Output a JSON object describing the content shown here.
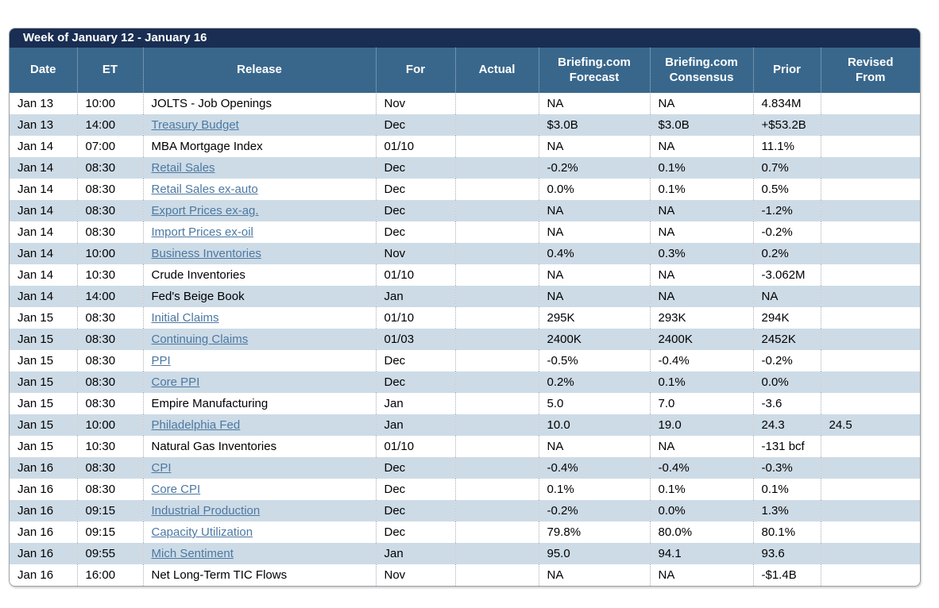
{
  "title": "Week of January 12 - January 16",
  "header": {
    "date": "Date",
    "et": "ET",
    "release": "Release",
    "for": "For",
    "actual": "Actual",
    "forecast_line1": "Briefing.com",
    "forecast_line2": "Forecast",
    "consensus_line1": "Briefing.com",
    "consensus_line2": "Consensus",
    "prior": "Prior",
    "revised_line1": "Revised",
    "revised_line2": "From"
  },
  "colors": {
    "title_bar_bg": "#192e52",
    "header_bg": "#39678c",
    "alt_row_bg": "#cddbe6",
    "link_color": "#4c78a2"
  },
  "rows": [
    {
      "date": "Jan 13",
      "et": "10:00",
      "release": "JOLTS - Job Openings",
      "link": false,
      "for": "Nov",
      "actual": "",
      "forecast": "NA",
      "consensus": "NA",
      "prior": "4.834M",
      "revised": ""
    },
    {
      "date": "Jan 13",
      "et": "14:00",
      "release": "Treasury Budget",
      "link": true,
      "for": "Dec",
      "actual": "",
      "forecast": "$3.0B",
      "consensus": "$3.0B",
      "prior": "+$53.2B",
      "revised": ""
    },
    {
      "date": "Jan 14",
      "et": "07:00",
      "release": "MBA Mortgage Index",
      "link": false,
      "for": "01/10",
      "actual": "",
      "forecast": "NA",
      "consensus": "NA",
      "prior": "11.1%",
      "revised": ""
    },
    {
      "date": "Jan 14",
      "et": "08:30",
      "release": "Retail Sales",
      "link": true,
      "for": "Dec",
      "actual": "",
      "forecast": "-0.2%",
      "consensus": "0.1%",
      "prior": "0.7%",
      "revised": ""
    },
    {
      "date": "Jan 14",
      "et": "08:30",
      "release": "Retail Sales ex-auto",
      "link": true,
      "for": "Dec",
      "actual": "",
      "forecast": "0.0%",
      "consensus": "0.1%",
      "prior": "0.5%",
      "revised": ""
    },
    {
      "date": "Jan 14",
      "et": "08:30",
      "release": "Export Prices ex-ag.",
      "link": true,
      "for": "Dec",
      "actual": "",
      "forecast": "NA",
      "consensus": "NA",
      "prior": "-1.2%",
      "revised": ""
    },
    {
      "date": "Jan 14",
      "et": "08:30",
      "release": "Import Prices ex-oil",
      "link": true,
      "for": "Dec",
      "actual": "",
      "forecast": "NA",
      "consensus": "NA",
      "prior": "-0.2%",
      "revised": ""
    },
    {
      "date": "Jan 14",
      "et": "10:00",
      "release": "Business Inventories",
      "link": true,
      "for": "Nov",
      "actual": "",
      "forecast": "0.4%",
      "consensus": "0.3%",
      "prior": "0.2%",
      "revised": ""
    },
    {
      "date": "Jan 14",
      "et": "10:30",
      "release": "Crude Inventories",
      "link": false,
      "for": "01/10",
      "actual": "",
      "forecast": "NA",
      "consensus": "NA",
      "prior": "-3.062M",
      "revised": ""
    },
    {
      "date": "Jan 14",
      "et": "14:00",
      "release": "Fed's Beige Book",
      "link": false,
      "for": "Jan",
      "actual": "",
      "forecast": "NA",
      "consensus": "NA",
      "prior": "NA",
      "revised": ""
    },
    {
      "date": "Jan 15",
      "et": "08:30",
      "release": "Initial Claims",
      "link": true,
      "for": "01/10",
      "actual": "",
      "forecast": "295K",
      "consensus": "293K",
      "prior": "294K",
      "revised": ""
    },
    {
      "date": "Jan 15",
      "et": "08:30",
      "release": "Continuing Claims",
      "link": true,
      "for": "01/03",
      "actual": "",
      "forecast": "2400K",
      "consensus": "2400K",
      "prior": "2452K",
      "revised": ""
    },
    {
      "date": "Jan 15",
      "et": "08:30",
      "release": "PPI",
      "link": true,
      "for": "Dec",
      "actual": "",
      "forecast": "-0.5%",
      "consensus": "-0.4%",
      "prior": "-0.2%",
      "revised": ""
    },
    {
      "date": "Jan 15",
      "et": "08:30",
      "release": "Core PPI",
      "link": true,
      "for": "Dec",
      "actual": "",
      "forecast": "0.2%",
      "consensus": "0.1%",
      "prior": "0.0%",
      "revised": ""
    },
    {
      "date": "Jan 15",
      "et": "08:30",
      "release": "Empire Manufacturing",
      "link": false,
      "for": "Jan",
      "actual": "",
      "forecast": "5.0",
      "consensus": "7.0",
      "prior": "-3.6",
      "revised": ""
    },
    {
      "date": "Jan 15",
      "et": "10:00",
      "release": "Philadelphia Fed",
      "link": true,
      "for": "Jan",
      "actual": "",
      "forecast": "10.0",
      "consensus": "19.0",
      "prior": "24.3",
      "revised": "24.5"
    },
    {
      "date": "Jan 15",
      "et": "10:30",
      "release": "Natural Gas Inventories",
      "link": false,
      "for": "01/10",
      "actual": "",
      "forecast": "NA",
      "consensus": "NA",
      "prior": "-131 bcf",
      "revised": ""
    },
    {
      "date": "Jan 16",
      "et": "08:30",
      "release": "CPI",
      "link": true,
      "for": "Dec",
      "actual": "",
      "forecast": "-0.4%",
      "consensus": "-0.4%",
      "prior": "-0.3%",
      "revised": ""
    },
    {
      "date": "Jan 16",
      "et": "08:30",
      "release": "Core CPI",
      "link": true,
      "for": "Dec",
      "actual": "",
      "forecast": "0.1%",
      "consensus": "0.1%",
      "prior": "0.1%",
      "revised": ""
    },
    {
      "date": "Jan 16",
      "et": "09:15",
      "release": "Industrial Production",
      "link": true,
      "for": "Dec",
      "actual": "",
      "forecast": "-0.2%",
      "consensus": "0.0%",
      "prior": "1.3%",
      "revised": ""
    },
    {
      "date": "Jan 16",
      "et": "09:15",
      "release": "Capacity Utilization",
      "link": true,
      "for": "Dec",
      "actual": "",
      "forecast": "79.8%",
      "consensus": "80.0%",
      "prior": "80.1%",
      "revised": ""
    },
    {
      "date": "Jan 16",
      "et": "09:55",
      "release": "Mich Sentiment",
      "link": true,
      "for": "Jan",
      "actual": "",
      "forecast": "95.0",
      "consensus": "94.1",
      "prior": "93.6",
      "revised": ""
    },
    {
      "date": "Jan 16",
      "et": "16:00",
      "release": "Net Long-Term TIC Flows",
      "link": false,
      "for": "Nov",
      "actual": "",
      "forecast": "NA",
      "consensus": "NA",
      "prior": "-$1.4B",
      "revised": ""
    }
  ]
}
